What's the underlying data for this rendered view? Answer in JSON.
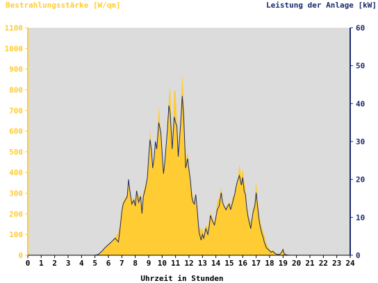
{
  "chart_data": {
    "type": "area",
    "title_left": "Bestrahlungsstärke [W/qm]",
    "title_right": "Leistung der Anlage [kW]",
    "xlabel": "Uhrzeit in Stunden",
    "x_ticks": [
      "0",
      "1",
      "2",
      "3",
      "4",
      "5",
      "6",
      "7",
      "8",
      "9",
      "10",
      "11",
      "12",
      "13",
      "14",
      "15",
      "16",
      "17",
      "18",
      "19",
      "20",
      "21",
      "22",
      "23",
      "24"
    ],
    "xlim": [
      0,
      24
    ],
    "y_left_ticks": [
      "0",
      "100",
      "200",
      "300",
      "400",
      "500",
      "600",
      "700",
      "800",
      "900",
      "1000",
      "1100"
    ],
    "ylim_left": [
      0,
      1100
    ],
    "y_right_ticks": [
      "0",
      "10",
      "20",
      "30",
      "40",
      "50",
      "60"
    ],
    "ylim_right": [
      0,
      60
    ],
    "grid": false,
    "colors": {
      "irradiance": "#ffcc33",
      "power": "#1a2a6c",
      "plot_bg": "#dcdcdc",
      "axis_left": "#ffcc33",
      "axis_right": "#1a2a6c"
    },
    "series": [
      {
        "name": "Bestrahlungsstärke [W/qm]",
        "axis": "left",
        "x": [
          0,
          5.0,
          5.25,
          5.5,
          5.75,
          6.0,
          6.25,
          6.5,
          6.75,
          6.9,
          7.0,
          7.1,
          7.25,
          7.4,
          7.5,
          7.6,
          7.75,
          7.9,
          8.0,
          8.1,
          8.25,
          8.4,
          8.5,
          8.6,
          8.75,
          8.9,
          9.0,
          9.1,
          9.2,
          9.3,
          9.4,
          9.5,
          9.6,
          9.75,
          9.9,
          10.0,
          10.1,
          10.2,
          10.3,
          10.4,
          10.5,
          10.6,
          10.75,
          10.9,
          11.0,
          11.1,
          11.2,
          11.3,
          11.4,
          11.5,
          11.6,
          11.75,
          11.9,
          12.0,
          12.1,
          12.2,
          12.3,
          12.4,
          12.5,
          12.6,
          12.75,
          12.9,
          13.0,
          13.1,
          13.25,
          13.4,
          13.5,
          13.6,
          13.75,
          13.9,
          14.0,
          14.1,
          14.25,
          14.4,
          14.5,
          14.6,
          14.75,
          14.9,
          15.0,
          15.1,
          15.25,
          15.4,
          15.5,
          15.6,
          15.75,
          15.9,
          16.0,
          16.1,
          16.2,
          16.3,
          16.4,
          16.5,
          16.6,
          16.75,
          16.9,
          17.0,
          17.1,
          17.25,
          17.4,
          17.5,
          17.6,
          17.75,
          17.9,
          18.0,
          18.1,
          18.25,
          18.4,
          18.5,
          18.6,
          18.75,
          18.9,
          19.0,
          19.1,
          19.25,
          19.5,
          20,
          24
        ],
        "y": [
          0,
          0,
          5,
          20,
          40,
          55,
          70,
          90,
          110,
          180,
          230,
          260,
          280,
          290,
          350,
          300,
          260,
          280,
          250,
          320,
          280,
          300,
          230,
          310,
          340,
          380,
          460,
          610,
          520,
          430,
          480,
          560,
          520,
          720,
          600,
          500,
          420,
          470,
          540,
          620,
          760,
          820,
          520,
          790,
          800,
          640,
          460,
          560,
          700,
          880,
          760,
          460,
          500,
          420,
          380,
          320,
          280,
          260,
          300,
          240,
          140,
          120,
          130,
          100,
          150,
          130,
          170,
          210,
          180,
          160,
          200,
          260,
          280,
          330,
          270,
          240,
          230,
          250,
          260,
          230,
          280,
          300,
          330,
          350,
          440,
          380,
          420,
          360,
          330,
          250,
          200,
          180,
          150,
          220,
          260,
          360,
          270,
          180,
          140,
          120,
          100,
          60,
          40,
          30,
          20,
          25,
          15,
          10,
          8,
          5,
          20,
          40,
          10,
          5,
          0,
          0,
          0
        ]
      },
      {
        "name": "Leistung der Anlage [kW]",
        "axis": "right",
        "x": [
          0,
          5.0,
          5.25,
          5.5,
          5.75,
          6.0,
          6.25,
          6.5,
          6.75,
          6.9,
          7.0,
          7.1,
          7.25,
          7.4,
          7.5,
          7.6,
          7.75,
          7.9,
          8.0,
          8.1,
          8.25,
          8.4,
          8.5,
          8.6,
          8.75,
          8.9,
          9.0,
          9.1,
          9.2,
          9.3,
          9.4,
          9.5,
          9.6,
          9.75,
          9.9,
          10.0,
          10.1,
          10.2,
          10.3,
          10.4,
          10.5,
          10.6,
          10.75,
          10.9,
          11.0,
          11.1,
          11.2,
          11.3,
          11.4,
          11.5,
          11.6,
          11.75,
          11.9,
          12.0,
          12.1,
          12.2,
          12.3,
          12.4,
          12.5,
          12.6,
          12.75,
          12.9,
          13.0,
          13.1,
          13.25,
          13.4,
          13.5,
          13.6,
          13.75,
          13.9,
          14.0,
          14.1,
          14.25,
          14.4,
          14.5,
          14.6,
          14.75,
          14.9,
          15.0,
          15.1,
          15.25,
          15.4,
          15.5,
          15.6,
          15.75,
          15.9,
          16.0,
          16.1,
          16.2,
          16.3,
          16.4,
          16.5,
          16.6,
          16.75,
          16.9,
          17.0,
          17.1,
          17.25,
          17.4,
          17.5,
          17.6,
          17.75,
          17.9,
          18.0,
          18.1,
          18.25,
          18.4,
          18.5,
          18.6,
          18.75,
          18.9,
          19.0,
          19.1,
          19.25,
          19.5,
          20,
          24
        ],
        "y": [
          0,
          0,
          0.2,
          1.0,
          2.0,
          2.8,
          3.6,
          4.5,
          3.5,
          8.0,
          11.5,
          13.5,
          14.5,
          15.5,
          20.0,
          17.0,
          13.5,
          14.5,
          13.0,
          17.0,
          14.0,
          15.5,
          11.0,
          15.5,
          17.5,
          20.5,
          26.0,
          30.5,
          28.0,
          23.0,
          25.5,
          30.0,
          28.0,
          35.0,
          32.5,
          27.0,
          21.5,
          24.5,
          29.0,
          33.5,
          39.5,
          37.5,
          28.0,
          36.5,
          35.0,
          34.0,
          26.0,
          31.0,
          36.0,
          42.0,
          37.0,
          23.0,
          25.5,
          22.5,
          20.0,
          15.5,
          14.0,
          13.5,
          16.0,
          12.5,
          6.0,
          4.0,
          5.5,
          4.5,
          7.0,
          5.5,
          7.5,
          10.5,
          9.0,
          8.0,
          10.0,
          12.0,
          13.0,
          16.5,
          14.0,
          13.0,
          12.0,
          13.0,
          13.5,
          12.0,
          14.0,
          16.0,
          18.0,
          19.5,
          21.0,
          18.5,
          20.5,
          17.0,
          16.0,
          12.5,
          10.0,
          8.5,
          7.0,
          11.0,
          13.0,
          16.5,
          13.0,
          8.5,
          6.0,
          5.0,
          3.5,
          2.0,
          1.5,
          1.2,
          0.8,
          1.0,
          0.5,
          0.3,
          0.2,
          0.2,
          0.8,
          1.5,
          0.3,
          0.1,
          0,
          0,
          0
        ]
      }
    ]
  }
}
